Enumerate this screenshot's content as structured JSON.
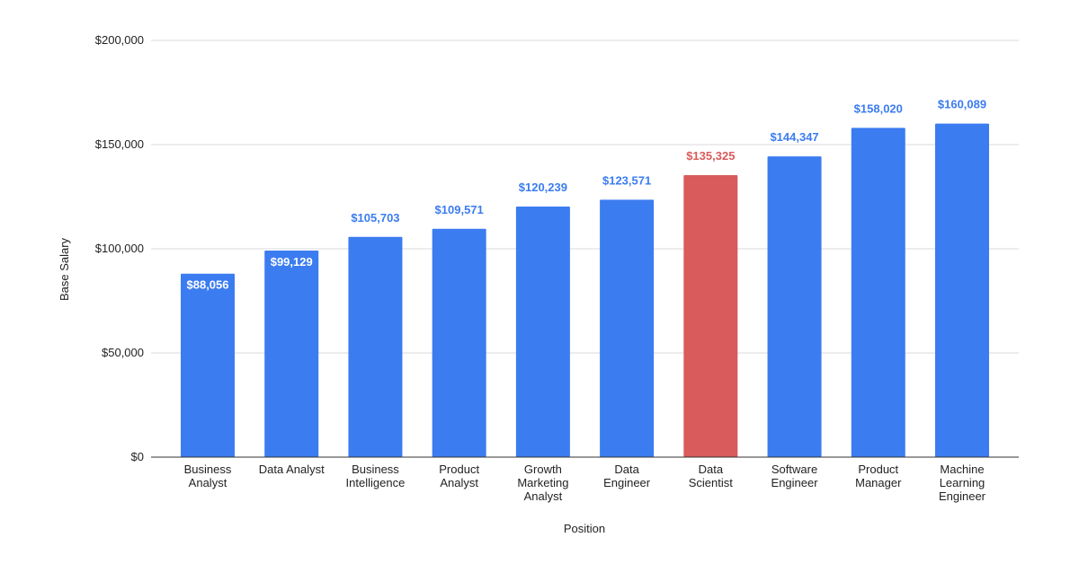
{
  "chart_data": {
    "type": "bar",
    "title": "",
    "xlabel": "Position",
    "ylabel": "Base Salary",
    "ylim": [
      0,
      200000
    ],
    "y_ticks": [
      0,
      50000,
      100000,
      150000,
      200000
    ],
    "y_tick_labels": [
      "$0",
      "$50,000",
      "$100,000",
      "$150,000",
      "$200,000"
    ],
    "grid": true,
    "legend": "none",
    "categories": [
      [
        "Business",
        "Analyst"
      ],
      [
        "Data Analyst"
      ],
      [
        "Business",
        "Intelligence"
      ],
      [
        "Product",
        "Analyst"
      ],
      [
        "Growth",
        "Marketing",
        "Analyst"
      ],
      [
        "Data",
        "Engineer"
      ],
      [
        "Data",
        "Scientist"
      ],
      [
        "Software",
        "Engineer"
      ],
      [
        "Product",
        "Manager"
      ],
      [
        "Machine",
        "Learning",
        "Engineer"
      ]
    ],
    "values": [
      88056,
      99129,
      105703,
      109571,
      120239,
      123571,
      135325,
      144347,
      158020,
      160089
    ],
    "value_labels": [
      "$88,056",
      "$99,129",
      "$105,703",
      "$109,571",
      "$120,239",
      "$123,571",
      "$135,325",
      "$144,347",
      "$158,020",
      "$160,089"
    ],
    "highlight_index": 6,
    "colors": {
      "bar": "#3b7cf0",
      "highlight": "#d95b5b",
      "label_inside": "#ffffff",
      "label_outside": "#3b7cf0",
      "label_highlight": "#d95b5b",
      "grid": "#d9d9d9",
      "axis": "#333333"
    }
  }
}
